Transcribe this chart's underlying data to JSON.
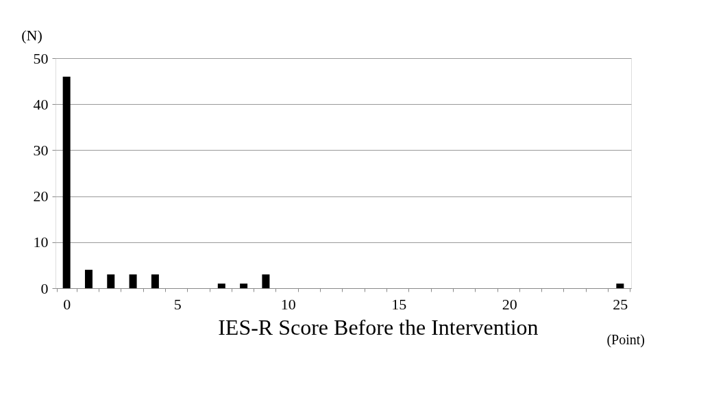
{
  "chart_data": {
    "type": "bar",
    "xlabel": "IES-R Score Before the Intervention",
    "ylabel": "(N)",
    "annotations": [
      "(Point)"
    ],
    "categories": [
      "0",
      null,
      null,
      null,
      null,
      "5",
      null,
      null,
      null,
      null,
      "10",
      null,
      null,
      null,
      null,
      "15",
      null,
      null,
      null,
      null,
      "20",
      null,
      null,
      null,
      null,
      "25"
    ],
    "values": [
      46,
      4,
      3,
      3,
      3,
      0,
      0,
      1,
      1,
      3,
      0,
      0,
      0,
      0,
      0,
      0,
      0,
      0,
      0,
      0,
      0,
      0,
      0,
      0,
      0,
      1
    ],
    "color": "#000000",
    "ylim": [
      0,
      50
    ],
    "yticks": [
      0,
      10,
      20,
      30,
      40,
      50
    ],
    "grid": "y"
  }
}
